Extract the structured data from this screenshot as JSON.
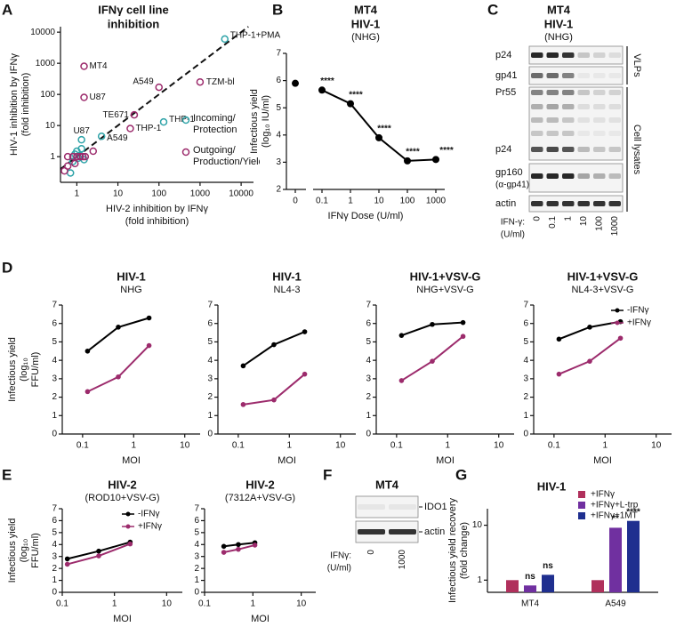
{
  "chart_data": [
    {
      "type": "scatter",
      "panel": "A",
      "title_lines": [
        "IFNγ cell line",
        "inhibition"
      ],
      "xlabel_lines": [
        "HIV-2 inhibition by IFNγ",
        "(fold inhibition)"
      ],
      "ylabel_lines": [
        "HIV-1 inhibition by IFNγ",
        "(fold inhibition)"
      ],
      "xscale": "log",
      "yscale": "log",
      "xlim": [
        0.4,
        20000
      ],
      "ylim": [
        0.15,
        15000
      ],
      "xticks": [
        1,
        10,
        100,
        1000,
        10000
      ],
      "yticks": [
        1,
        10,
        100,
        1000,
        10000
      ],
      "legend": "lower right",
      "series": [
        {
          "name": "Incoming/ Protection",
          "color": "#2ea3a8",
          "x": [
            4000,
            130,
            4,
            1.3,
            0.9,
            1,
            1.1,
            1.3,
            0.7,
            1.5,
            1.2,
            0.8
          ],
          "values": [
            6000,
            13,
            4.5,
            3.5,
            1.2,
            1.5,
            0.9,
            1.8,
            0.3,
            0.8,
            1.1,
            0.7
          ],
          "point_labels": [
            "THP-1+PMA",
            "THP-1",
            "A549",
            "U87",
            null,
            null,
            null,
            null,
            null,
            null,
            null,
            null
          ]
        },
        {
          "name": "Outgoing/ Production/Yield",
          "color": "#9c2b6c",
          "x": [
            1.5,
            1.5,
            100,
            1000,
            25,
            20,
            0.6,
            0.8,
            1,
            1.2,
            1.4,
            1.6,
            0.6,
            0.5,
            2.5,
            0.9
          ],
          "values": [
            800,
            80,
            170,
            250,
            22,
            8,
            0.5,
            1,
            1,
            1,
            1,
            1,
            1,
            0.35,
            1.5,
            0.6
          ],
          "point_labels": [
            "MT4",
            "U87",
            "A549",
            "TZM-bl",
            "TE671",
            "THP-1",
            null,
            null,
            null,
            null,
            null,
            null,
            null,
            null,
            null,
            null
          ]
        }
      ]
    },
    {
      "type": "line",
      "panel": "B",
      "title_lines": [
        "MT4",
        "HIV-1"
      ],
      "subtitle": "(NHG)",
      "ylabel_lines": [
        "Infectious yield",
        "(log₁₀ IU/ml)"
      ],
      "xlabel_lines": [
        "IFNγ Dose (U/ml)"
      ],
      "categories": [
        "0",
        "0.1",
        "1",
        "10",
        "100",
        "1000"
      ],
      "broken_axis": true,
      "ylim": [
        2,
        7
      ],
      "yticks": [
        2,
        3,
        4,
        5,
        6,
        7
      ],
      "series": [
        {
          "color": "#000000",
          "values": [
            5.9,
            5.65,
            5.15,
            3.9,
            3.05,
            3.1
          ],
          "annotations": [
            null,
            "****",
            "****",
            "****",
            "****",
            "****"
          ]
        }
      ]
    },
    {
      "type": "line",
      "panel": "D",
      "title_lines": [
        "HIV-1"
      ],
      "subtitle": "NHG",
      "ylabel_lines": [
        "Infectious yield",
        "(log₁₀",
        "FFU/ml)"
      ],
      "xlabel_lines": [
        "MOI"
      ],
      "xscale": "log",
      "x": [
        0.125,
        0.5,
        2
      ],
      "xlim": [
        0.04,
        20
      ],
      "xticks": [
        0.1,
        1,
        10
      ],
      "ylim": [
        0,
        7
      ],
      "yticks": [
        0,
        1,
        2,
        3,
        4,
        5,
        6,
        7
      ],
      "series": [
        {
          "color": "#000000",
          "values": [
            4.5,
            5.8,
            6.3
          ]
        },
        {
          "color": "#9c2b6c",
          "values": [
            2.3,
            3.1,
            4.8
          ]
        }
      ]
    },
    {
      "type": "line",
      "title_lines": [
        "HIV-1"
      ],
      "subtitle": "NL4-3",
      "xlabel_lines": [
        "MOI"
      ],
      "xscale": "log",
      "x": [
        0.125,
        0.5,
        2
      ],
      "xlim": [
        0.04,
        20
      ],
      "xticks": [
        0.1,
        1,
        10
      ],
      "ylim": [
        0,
        7
      ],
      "yticks": [
        0,
        1,
        2,
        3,
        4,
        5,
        6,
        7
      ],
      "series": [
        {
          "color": "#000000",
          "values": [
            3.7,
            4.85,
            5.55
          ]
        },
        {
          "color": "#9c2b6c",
          "values": [
            1.6,
            1.85,
            3.25
          ]
        }
      ]
    },
    {
      "type": "line",
      "title_lines": [
        "HIV-1+VSV-G"
      ],
      "subtitle": "NHG+VSV-G",
      "xlabel_lines": [
        "MOI"
      ],
      "xscale": "log",
      "x": [
        0.125,
        0.5,
        2
      ],
      "xlim": [
        0.04,
        20
      ],
      "xticks": [
        0.1,
        1,
        10
      ],
      "ylim": [
        0,
        7
      ],
      "yticks": [
        0,
        1,
        2,
        3,
        4,
        5,
        6,
        7
      ],
      "series": [
        {
          "color": "#000000",
          "values": [
            5.35,
            5.95,
            6.05
          ]
        },
        {
          "color": "#9c2b6c",
          "values": [
            2.9,
            3.95,
            5.3
          ]
        }
      ]
    },
    {
      "type": "line",
      "title_lines": [
        "HIV-1+VSV-G"
      ],
      "subtitle": "NL4-3+VSV-G",
      "xlabel_lines": [
        "MOI"
      ],
      "xscale": "log",
      "x": [
        0.125,
        0.5,
        2
      ],
      "xlim": [
        0.04,
        20
      ],
      "xticks": [
        0.1,
        1,
        10
      ],
      "ylim": [
        0,
        7
      ],
      "yticks": [
        0,
        1,
        2,
        3,
        4,
        5,
        6,
        7
      ],
      "legend": "upper right",
      "series": [
        {
          "name": "-IFNγ",
          "color": "#000000",
          "values": [
            5.15,
            5.8,
            6.1
          ]
        },
        {
          "name": "+IFNγ",
          "color": "#9c2b6c",
          "values": [
            3.25,
            3.95,
            5.2
          ]
        }
      ]
    },
    {
      "type": "line",
      "panel": "E",
      "title_lines": [
        "HIV-2"
      ],
      "subtitle": "(ROD10+VSV-G)",
      "ylabel_lines": [
        "Infectious yield",
        "(log₁₀",
        "FFU/ml)"
      ],
      "xlabel_lines": [
        "MOI"
      ],
      "xscale": "log",
      "x": [
        0.125,
        0.5,
        2
      ],
      "xlim": [
        0.1,
        20
      ],
      "xticks": [
        0.1,
        1,
        10
      ],
      "ylim": [
        0,
        7
      ],
      "yticks": [
        0,
        1,
        2,
        3,
        4,
        5,
        6,
        7
      ],
      "legend": "upper right",
      "series": [
        {
          "name": "-IFNγ",
          "color": "#000000",
          "values": [
            2.8,
            3.45,
            4.2
          ]
        },
        {
          "name": "+IFNγ",
          "color": "#9c2b6c",
          "values": [
            2.35,
            3.05,
            4.05
          ]
        }
      ]
    },
    {
      "type": "line",
      "title_lines": [
        "HIV-2"
      ],
      "subtitle": "(7312A+VSV-G)",
      "xlabel_lines": [
        "MOI"
      ],
      "xscale": "log",
      "x": [
        0.25,
        0.5,
        1.1
      ],
      "xlim": [
        0.1,
        20
      ],
      "xticks": [
        0.1,
        1,
        10
      ],
      "ylim": [
        0,
        7
      ],
      "yticks": [
        0,
        1,
        2,
        3,
        4,
        5,
        6,
        7
      ],
      "series": [
        {
          "color": "#000000",
          "values": [
            3.85,
            4.0,
            4.15
          ]
        },
        {
          "color": "#9c2b6c",
          "values": [
            3.35,
            3.6,
            3.95
          ]
        }
      ]
    },
    {
      "type": "bar",
      "panel": "G",
      "title_lines": [
        "HIV-1"
      ],
      "ylabel_lines": [
        "Infectious yield recovery",
        "(fold change)"
      ],
      "categories": [
        "MT4",
        "A549"
      ],
      "yscale": "log",
      "ylim": [
        0.6,
        20
      ],
      "yticks": [
        1,
        10
      ],
      "legend": "upper right",
      "series": [
        {
          "name": "+IFNγ",
          "color": "#b0305c",
          "values": [
            1,
            1
          ],
          "annotations": [
            null,
            null
          ]
        },
        {
          "name": "+IFNγ+L-trp",
          "color": "#7030a0",
          "values": [
            0.8,
            9
          ],
          "annotations": [
            "ns",
            "**"
          ]
        },
        {
          "name": "+IFNγ+1MT",
          "color": "#1f2f8f",
          "values": [
            1.25,
            12
          ],
          "annotations": [
            "ns",
            "****"
          ]
        }
      ]
    }
  ],
  "blots": [
    {
      "panel": "C",
      "title_lines": [
        "MT4",
        "HIV-1"
      ],
      "subtitle": "(NHG)",
      "bands": [
        "p24",
        "gp41",
        "Pr55",
        "p24",
        "gp160",
        "(α-gp41)",
        "actin"
      ],
      "groups": [
        "VLPs",
        "Cell lysates"
      ],
      "lane_header_lines": [
        "IFN-γ:",
        "(U/ml)"
      ],
      "lanes": [
        "0",
        "0.1",
        "1",
        "10",
        "100",
        "1000"
      ]
    },
    {
      "panel": "F",
      "title_lines": [
        "MT4"
      ],
      "bands": [
        "IDO1",
        "actin"
      ],
      "lane_header_lines": [
        "IFNγ:",
        "(U/ml)"
      ],
      "lanes": [
        "0",
        "1000"
      ]
    }
  ]
}
